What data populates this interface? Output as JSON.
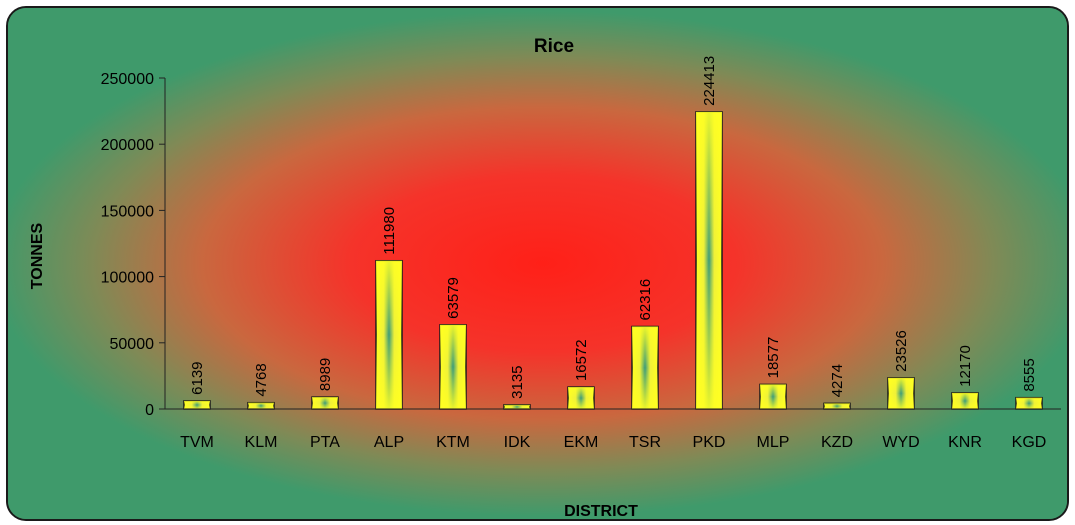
{
  "chart_data": {
    "type": "bar",
    "title": "Rice",
    "xlabel": "DISTRICT",
    "ylabel": "TONNES",
    "categories": [
      "TVM",
      "KLM",
      "PTA",
      "ALP",
      "KTM",
      "IDK",
      "EKM",
      "TSR",
      "PKD",
      "MLP",
      "KZD",
      "WYD",
      "KNR",
      "KGD"
    ],
    "values": [
      6139,
      4768,
      8989,
      111980,
      63579,
      3135,
      16572,
      62316,
      224413,
      18577,
      4274,
      23526,
      12170,
      8555
    ],
    "ylim": [
      0,
      250000
    ],
    "yticks": [
      "0",
      "50000",
      "100000",
      "150000",
      "200000",
      "250000"
    ],
    "grid": false,
    "legend": "none",
    "colors": {
      "bar_edge": "#ffff22",
      "bar_center": "#3a9a7a",
      "bar_outline": "#1a1a1a",
      "background_center": "#ff2a22",
      "background_edge": "#3f9a6b"
    }
  }
}
